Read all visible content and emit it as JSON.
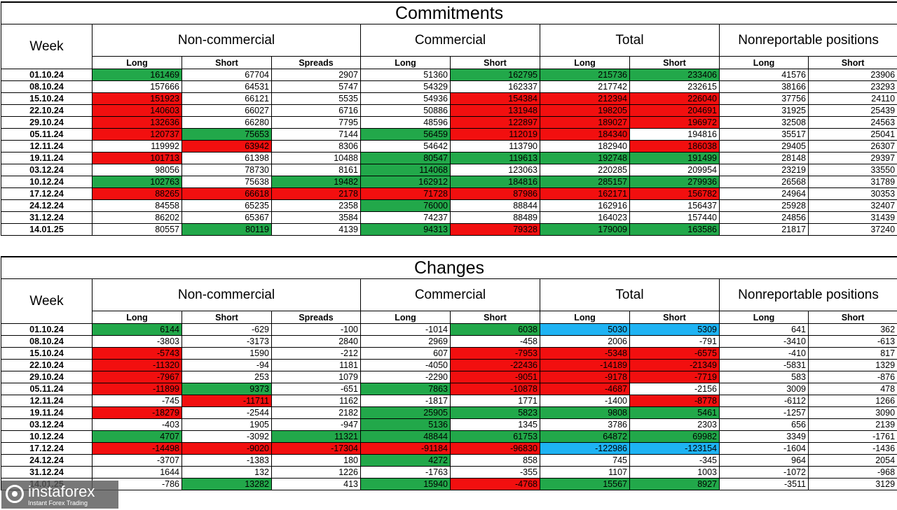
{
  "colors": {
    "green": "#22a84a",
    "red": "#f20f0f",
    "blue": "#1eb3f3"
  },
  "headers": {
    "week": "Week",
    "groups": [
      "Non-commercial",
      "Commercial",
      "Total",
      "Nonreportable positions"
    ],
    "subs": [
      "Long",
      "Short",
      "Spreads",
      "Long",
      "Short",
      "Long",
      "Short",
      "Long",
      "Short"
    ]
  },
  "commitments": {
    "title": "Commitments",
    "rows": [
      {
        "week": "01.10.24",
        "values": [
          "161469",
          "67704",
          "2907",
          "51360",
          "162795",
          "215736",
          "233406",
          "41576",
          "23906"
        ],
        "colors": [
          "g",
          "",
          "",
          "",
          "g",
          "g",
          "g",
          "",
          ""
        ]
      },
      {
        "week": "08.10.24",
        "values": [
          "157666",
          "64531",
          "5747",
          "54329",
          "162337",
          "217742",
          "232615",
          "38166",
          "23293"
        ],
        "colors": [
          "",
          "",
          "",
          "",
          "",
          "",
          "",
          "",
          ""
        ]
      },
      {
        "week": "15.10.24",
        "values": [
          "151923",
          "66121",
          "5535",
          "54936",
          "154384",
          "212394",
          "226040",
          "37756",
          "24110"
        ],
        "colors": [
          "r",
          "",
          "",
          "",
          "r",
          "r",
          "r",
          "",
          ""
        ]
      },
      {
        "week": "22.10.24",
        "values": [
          "140603",
          "66027",
          "6716",
          "50886",
          "131948",
          "198205",
          "204691",
          "31925",
          "25439"
        ],
        "colors": [
          "r",
          "",
          "",
          "",
          "r",
          "r",
          "r",
          "",
          ""
        ]
      },
      {
        "week": "29.10.24",
        "values": [
          "132636",
          "66280",
          "7795",
          "48596",
          "122897",
          "189027",
          "196972",
          "32508",
          "24563"
        ],
        "colors": [
          "r",
          "",
          "",
          "",
          "r",
          "r",
          "r",
          "",
          ""
        ]
      },
      {
        "week": "05.11.24",
        "values": [
          "120737",
          "75653",
          "7144",
          "56459",
          "112019",
          "184340",
          "194816",
          "35517",
          "25041"
        ],
        "colors": [
          "r",
          "g",
          "",
          "g",
          "r",
          "r",
          "",
          "",
          ""
        ]
      },
      {
        "week": "12.11.24",
        "values": [
          "119992",
          "63942",
          "8306",
          "54642",
          "113790",
          "182940",
          "186038",
          "29405",
          "26307"
        ],
        "colors": [
          "",
          "r",
          "",
          "",
          "",
          "",
          "r",
          "",
          ""
        ]
      },
      {
        "week": "19.11.24",
        "values": [
          "101713",
          "61398",
          "10488",
          "80547",
          "119613",
          "192748",
          "191499",
          "28148",
          "29397"
        ],
        "colors": [
          "r",
          "",
          "",
          "g",
          "g",
          "g",
          "g",
          "",
          ""
        ]
      },
      {
        "week": "03.12.24",
        "values": [
          "98056",
          "78730",
          "8161",
          "114068",
          "123063",
          "220285",
          "209954",
          "23219",
          "33550"
        ],
        "colors": [
          "",
          "",
          "",
          "g",
          "",
          "",
          "",
          "",
          ""
        ]
      },
      {
        "week": "10.12.24",
        "values": [
          "102763",
          "75638",
          "19482",
          "162912",
          "184816",
          "285157",
          "279936",
          "26568",
          "31789"
        ],
        "colors": [
          "g",
          "",
          "g",
          "g",
          "g",
          "g",
          "g",
          "",
          ""
        ]
      },
      {
        "week": "17.12.24",
        "values": [
          "88265",
          "66618",
          "2178",
          "71728",
          "87986",
          "162171",
          "156782",
          "24964",
          "30353"
        ],
        "colors": [
          "r",
          "r",
          "r",
          "r",
          "r",
          "r",
          "r",
          "",
          ""
        ]
      },
      {
        "week": "24.12.24",
        "values": [
          "84558",
          "65235",
          "2358",
          "76000",
          "88844",
          "162916",
          "156437",
          "25928",
          "32407"
        ],
        "colors": [
          "",
          "",
          "",
          "g",
          "",
          "",
          "",
          "",
          ""
        ]
      },
      {
        "week": "31.12.24",
        "values": [
          "86202",
          "65367",
          "3584",
          "74237",
          "88489",
          "164023",
          "157440",
          "24856",
          "31439"
        ],
        "colors": [
          "",
          "",
          "",
          "",
          "",
          "",
          "",
          "",
          ""
        ]
      },
      {
        "week": "14.01.25",
        "values": [
          "80557",
          "80119",
          "4139",
          "94313",
          "79328",
          "179009",
          "163586",
          "21817",
          "37240"
        ],
        "colors": [
          "",
          "g",
          "",
          "g",
          "r",
          "g",
          "g",
          "",
          ""
        ]
      }
    ]
  },
  "changes": {
    "title": "Changes",
    "rows": [
      {
        "week": "01.10.24",
        "values": [
          "6144",
          "-629",
          "-100",
          "-1014",
          "6038",
          "5030",
          "5309",
          "641",
          "362"
        ],
        "colors": [
          "g",
          "",
          "",
          "",
          "g",
          "b",
          "b",
          "",
          ""
        ]
      },
      {
        "week": "08.10.24",
        "values": [
          "-3803",
          "-3173",
          "2840",
          "2969",
          "-458",
          "2006",
          "-791",
          "-3410",
          "-613"
        ],
        "colors": [
          "",
          "",
          "",
          "",
          "",
          "",
          "",
          "",
          ""
        ]
      },
      {
        "week": "15.10.24",
        "values": [
          "-5743",
          "1590",
          "-212",
          "607",
          "-7953",
          "-5348",
          "-6575",
          "-410",
          "817"
        ],
        "colors": [
          "r",
          "",
          "",
          "",
          "r",
          "r",
          "r",
          "",
          ""
        ]
      },
      {
        "week": "22.10.24",
        "values": [
          "-11320",
          "-94",
          "1181",
          "-4050",
          "-22436",
          "-14189",
          "-21349",
          "-5831",
          "1329"
        ],
        "colors": [
          "r",
          "",
          "",
          "",
          "r",
          "r",
          "r",
          "",
          ""
        ]
      },
      {
        "week": "29.10.24",
        "values": [
          "-7967",
          "253",
          "1079",
          "-2290",
          "-9051",
          "-9178",
          "-7719",
          "583",
          "-876"
        ],
        "colors": [
          "r",
          "",
          "",
          "",
          "r",
          "r",
          "r",
          "",
          ""
        ]
      },
      {
        "week": "05.11.24",
        "values": [
          "-11899",
          "9373",
          "-651",
          "7863",
          "-10878",
          "-4687",
          "-2156",
          "3009",
          "478"
        ],
        "colors": [
          "r",
          "g",
          "",
          "g",
          "r",
          "r",
          "",
          "",
          ""
        ]
      },
      {
        "week": "12.11.24",
        "values": [
          "-745",
          "-11711",
          "1162",
          "-1817",
          "1771",
          "-1400",
          "-8778",
          "-6112",
          "1266"
        ],
        "colors": [
          "",
          "r",
          "",
          "",
          "",
          "",
          "r",
          "",
          ""
        ]
      },
      {
        "week": "19.11.24",
        "values": [
          "-18279",
          "-2544",
          "2182",
          "25905",
          "5823",
          "9808",
          "5461",
          "-1257",
          "3090"
        ],
        "colors": [
          "r",
          "",
          "",
          "g",
          "g",
          "g",
          "g",
          "",
          ""
        ]
      },
      {
        "week": "03.12.24",
        "values": [
          "-403",
          "1905",
          "-947",
          "5136",
          "1345",
          "3786",
          "2303",
          "656",
          "2139"
        ],
        "colors": [
          "",
          "",
          "",
          "g",
          "",
          "",
          "",
          "",
          ""
        ]
      },
      {
        "week": "10.12.24",
        "values": [
          "4707",
          "-3092",
          "11321",
          "48844",
          "61753",
          "64872",
          "69982",
          "3349",
          "-1761"
        ],
        "colors": [
          "g",
          "",
          "g",
          "g",
          "g",
          "g",
          "g",
          "",
          ""
        ]
      },
      {
        "week": "17.12.24",
        "values": [
          "-14498",
          "-9020",
          "-17304",
          "-91184",
          "-96830",
          "-122986",
          "-123154",
          "-1604",
          "-1436"
        ],
        "colors": [
          "r",
          "r",
          "r",
          "r",
          "r",
          "b",
          "b",
          "",
          ""
        ]
      },
      {
        "week": "24.12.24",
        "values": [
          "-3707",
          "-1383",
          "180",
          "4272",
          "858",
          "745",
          "-345",
          "964",
          "2054"
        ],
        "colors": [
          "",
          "",
          "",
          "g",
          "",
          "",
          "",
          "",
          ""
        ]
      },
      {
        "week": "31.12.24",
        "values": [
          "1644",
          "132",
          "1226",
          "-1763",
          "-355",
          "1107",
          "1003",
          "-1072",
          "-968"
        ],
        "colors": [
          "",
          "",
          "",
          "",
          "",
          "",
          "",
          "",
          ""
        ]
      },
      {
        "week": "14.01.25",
        "values": [
          "-786",
          "13282",
          "413",
          "15940",
          "-4768",
          "15567",
          "8927",
          "-3511",
          "3129"
        ],
        "colors": [
          "",
          "g",
          "",
          "g",
          "r",
          "g",
          "g",
          "",
          ""
        ]
      }
    ]
  },
  "logo": {
    "name": "instaforex",
    "tagline": "Instant Forex Trading"
  }
}
